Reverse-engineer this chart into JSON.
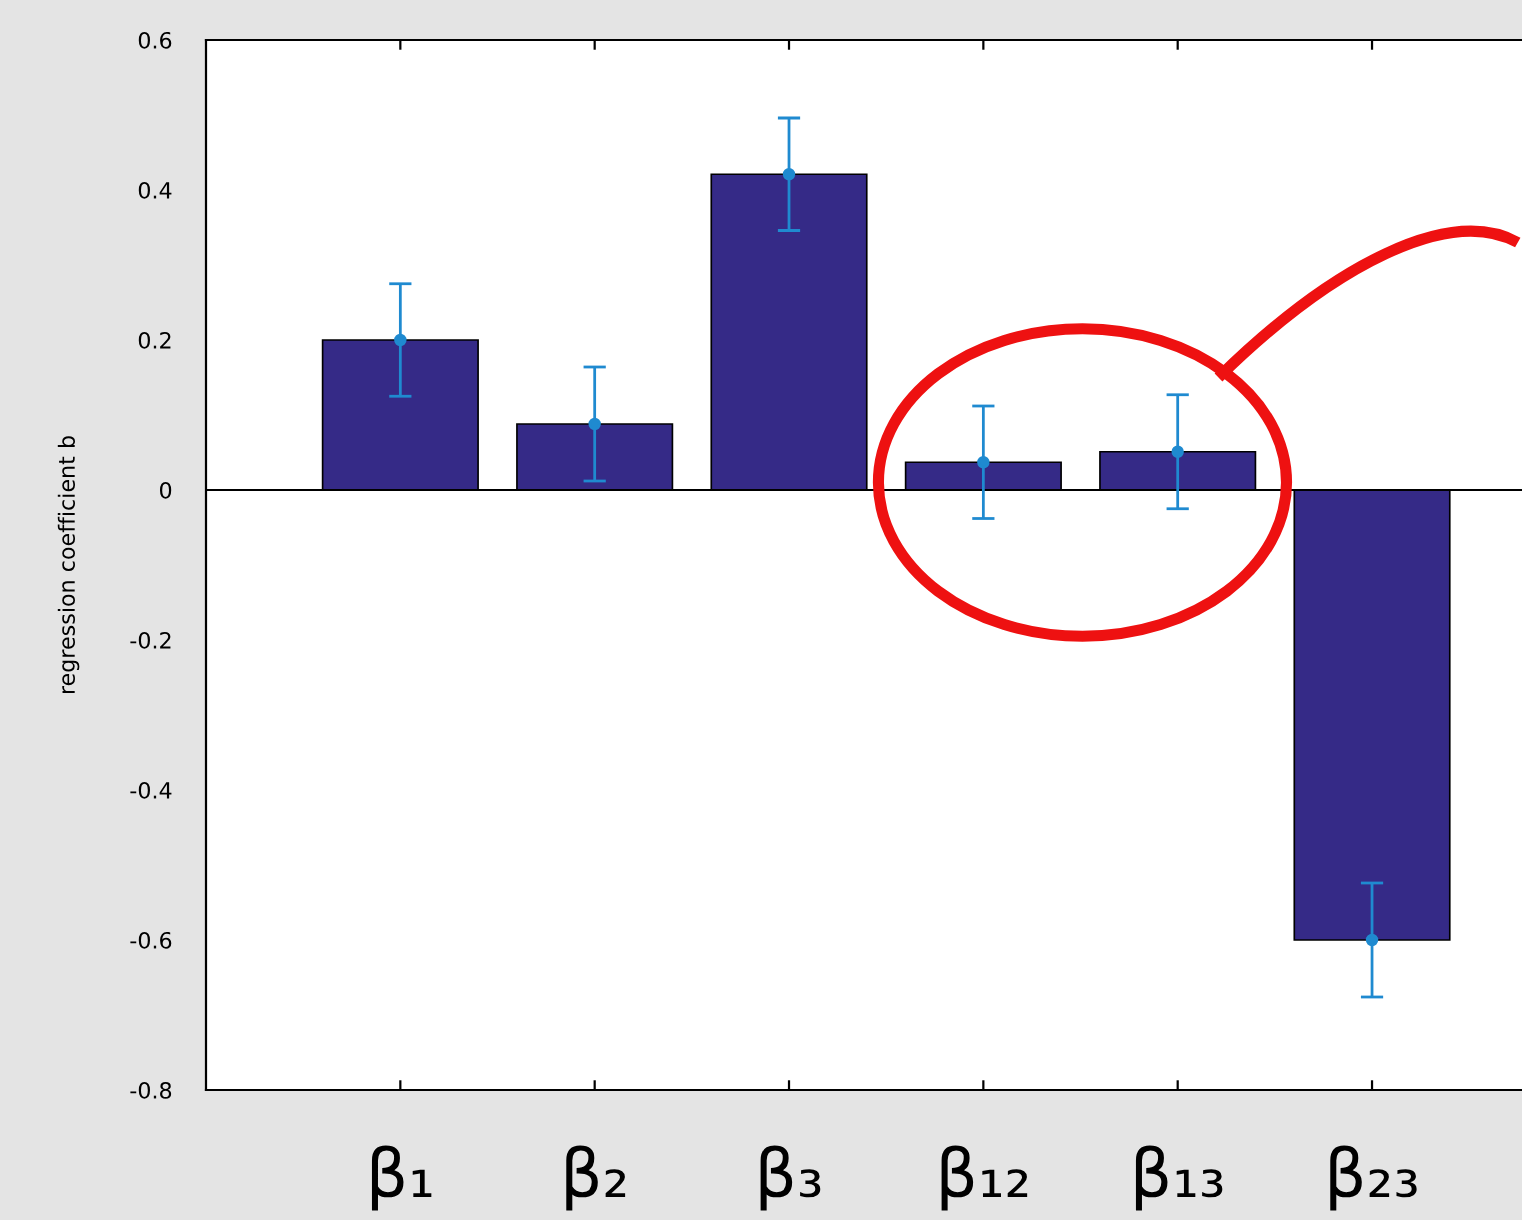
{
  "chart_data": {
    "type": "bar",
    "categories": [
      "β₁",
      "β₂",
      "β₃",
      "β₁₂",
      "β₁₃",
      "β₂₃"
    ],
    "values": [
      0.2,
      0.088,
      0.421,
      0.037,
      0.051,
      -0.6
    ],
    "errors": [
      0.075,
      0.076,
      0.075,
      0.075,
      0.076,
      0.076
    ],
    "color": "#352a87",
    "series": [
      {
        "type": "scatter",
        "x": [
          "β₁",
          "β₂",
          "β₃",
          "β₁₂",
          "β₁₃",
          "β₂₃"
        ],
        "values": [
          0.2,
          0.088,
          0.421,
          0.037,
          0.051,
          -0.6
        ],
        "color": "#1f8ad0",
        "marker": "circle"
      }
    ],
    "ylabel": "regression coefficient b",
    "ylim": [
      -0.8,
      0.6
    ],
    "yticks": [
      {
        "value": -0.8,
        "label": "-0.8"
      },
      {
        "value": -0.6,
        "label": "-0.6"
      },
      {
        "value": -0.4,
        "label": "-0.4"
      },
      {
        "value": -0.2,
        "label": "-0.2"
      },
      0,
      0.2,
      0.4,
      0.6
    ],
    "ref_lines": [
      {
        "axis": "y",
        "value": 0,
        "color": "#000000"
      }
    ],
    "grid": false,
    "legend": false
  }
}
